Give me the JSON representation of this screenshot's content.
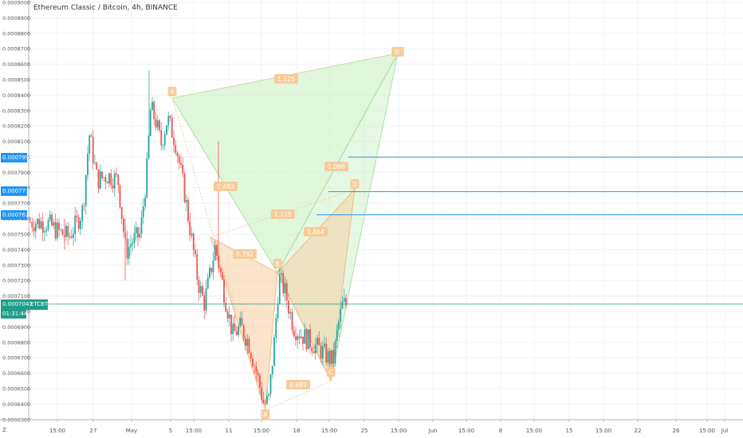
{
  "window": {
    "symbol_title": "Ethereum Classic / Bitcoin, 4h, BINANCE",
    "bottom_left_label": "Z"
  },
  "colors": {
    "up": "#26a69a",
    "down": "#ef5350",
    "pattern_green": "#c8f0c0",
    "pattern_orange": "#f7c995",
    "level_line": "#2196f3",
    "current_price_line": "#1f9e89"
  },
  "price_axis": {
    "min": 0.00063,
    "max": 0.0009,
    "tick_labels": [
      "0.0009000",
      "0.0008900",
      "0.0008800",
      "0.0008700",
      "0.0008600",
      "0.0008500",
      "0.0008400",
      "0.0008300",
      "0.0008200",
      "0.0008100",
      "0.0008000",
      "0.0007900",
      "0.0007800",
      "0.0007700",
      "0.0007600",
      "0.0007500",
      "0.0007400",
      "0.0007300",
      "0.0007200",
      "0.0007100",
      "0.0007000",
      "0.0006900",
      "0.0006800",
      "0.0006700",
      "0.0006600",
      "0.0006500",
      "0.0006400",
      "0.0006300"
    ]
  },
  "price_labels": {
    "current_value": "0.0007047",
    "current_symbol": "ETCBTC",
    "countdown": "01:31:44",
    "levels": [
      "0.0007999",
      "0.0007775",
      "0.0007625"
    ]
  },
  "time_axis": {
    "labels": [
      "15:00",
      "27",
      "May",
      "5",
      "15:00",
      "11",
      "15:00",
      "18",
      "15:00",
      "25",
      "15:00",
      "Jun",
      "15:00",
      "8",
      "15:00",
      "15",
      "15:00",
      "22",
      "26",
      "15:00",
      "Jul"
    ]
  },
  "pattern": {
    "points": [
      "X",
      "A",
      "B",
      "C",
      "D",
      "D'"
    ],
    "ratios": [
      "0.792",
      "0.483",
      "1.125",
      "0.689",
      "1.864",
      "1.096",
      "1.125"
    ]
  },
  "chart_data": {
    "type": "candlestick",
    "title": "Ethereum Classic / Bitcoin, 4h, BINANCE",
    "ylim": [
      0.00063,
      0.0009
    ],
    "last_price": 0.0007047,
    "horizontal_levels": [
      0.0007999,
      0.0007775,
      0.0007625
    ],
    "pattern_points": {
      "X": 0.000838,
      "A": 0.000636,
      "B": 0.000725,
      "C": 0.000655,
      "D": 0.000779,
      "D'": 0.000867
    }
  }
}
